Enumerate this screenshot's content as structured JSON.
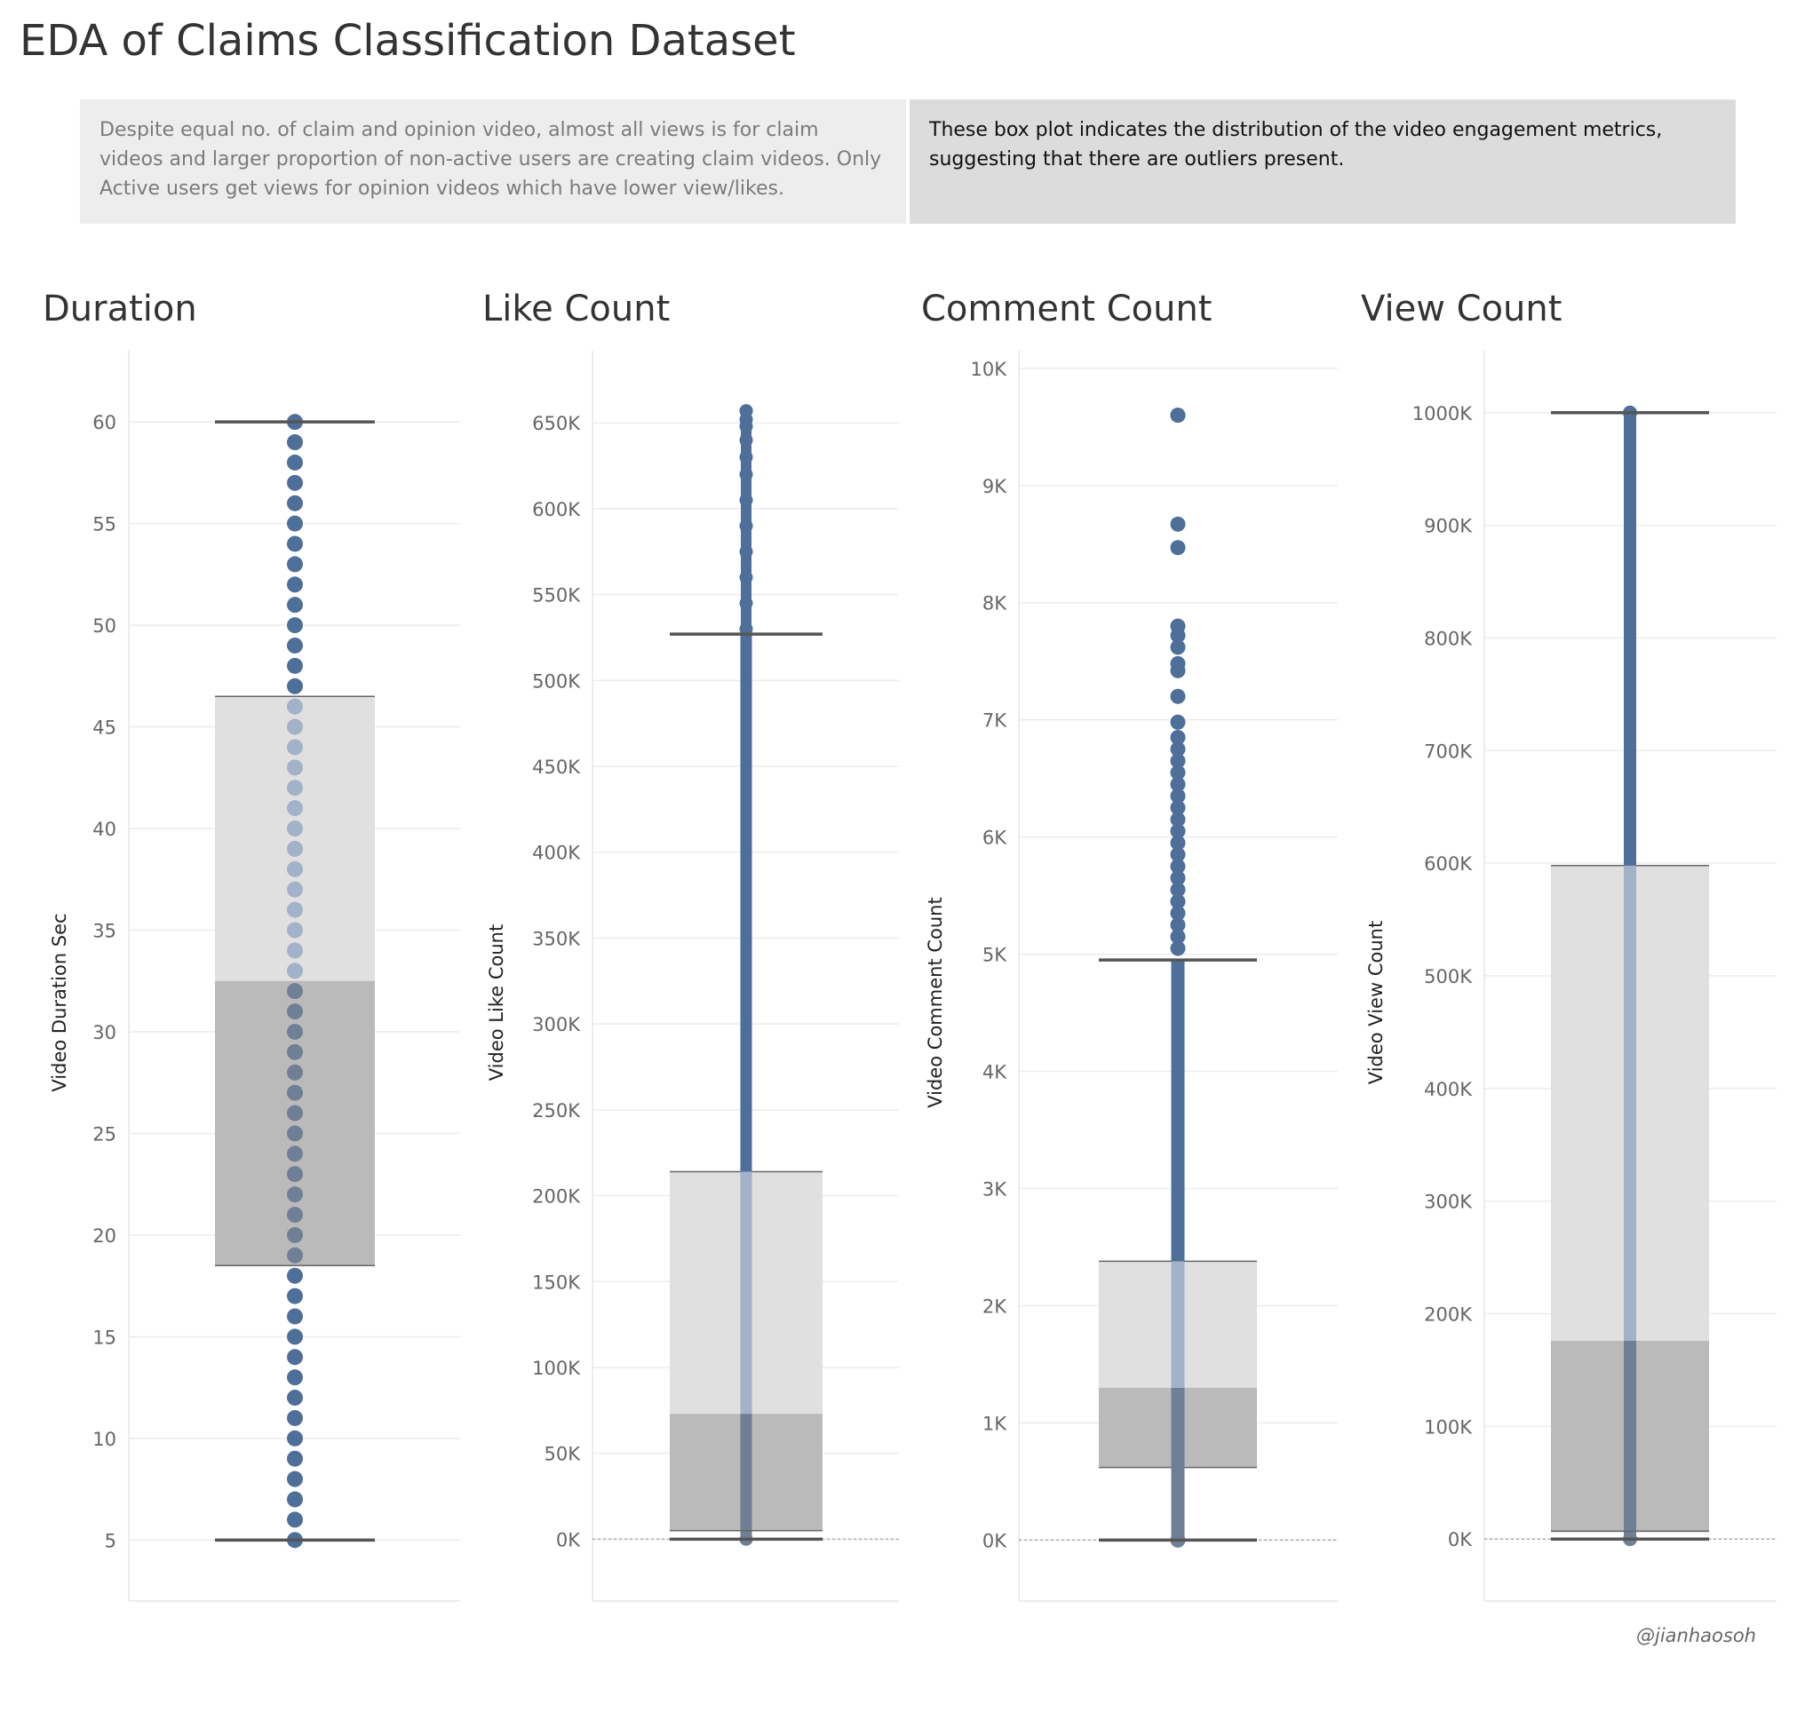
{
  "page": {
    "title": "EDA of Claims Classification Dataset",
    "note_left": "Despite equal no. of claim and opinion video, almost all views is for claim videos and larger proportion of non-active users are creating claim videos. Only Active users get views for opinion videos which have lower view/likes.",
    "note_right": "These box plot indicates the distribution of the video engagement metrics, suggesting that there are outliers present.",
    "credit": "@jianhaosoh"
  },
  "colors": {
    "point": "#4e6f99",
    "point_in_upper_box": "#a2b2c8",
    "point_in_lower_box": "#6f8096",
    "box_upper": "#e0e0e0",
    "box_lower": "#bababa",
    "whisker": "#555555",
    "grid": "#ececec"
  },
  "chart_data": [
    {
      "type": "box",
      "title": "Duration",
      "ylabel": "Video Duration Sec",
      "ylim": [
        2,
        63.5
      ],
      "ticks": [
        5,
        10,
        15,
        20,
        25,
        30,
        35,
        40,
        45,
        50,
        55,
        60
      ],
      "tick_labels": [
        "5",
        "10",
        "15",
        "20",
        "25",
        "30",
        "35",
        "40",
        "45",
        "50",
        "55",
        "60"
      ],
      "whisker_low": 5,
      "q1": 18.5,
      "median": 32.5,
      "q3": 46.5,
      "whisker_high": 60,
      "points": "every integer from 5 to 60 (discrete values)",
      "point_min": 5,
      "point_max": 60,
      "point_step": 1,
      "outliers": []
    },
    {
      "type": "box",
      "title": "Like Count",
      "ylabel": "Video Like Count",
      "ylim": [
        -36000,
        692000
      ],
      "ticks": [
        0,
        50000,
        100000,
        150000,
        200000,
        250000,
        300000,
        350000,
        400000,
        450000,
        500000,
        550000,
        600000,
        650000
      ],
      "tick_labels": [
        "0K",
        "50K",
        "100K",
        "150K",
        "200K",
        "250K",
        "300K",
        "350K",
        "400K",
        "450K",
        "500K",
        "550K",
        "600K",
        "650K"
      ],
      "whisker_low": 0,
      "lower_bound_line": 5000,
      "q1": 5000,
      "median": 73000,
      "q3": 214000,
      "whisker_high": 527000,
      "point_min": 0,
      "point_max": 657000,
      "outliers": [
        530000,
        545000,
        560000,
        575000,
        590000,
        605000,
        620000,
        630000,
        640000,
        648000,
        652000,
        657000
      ]
    },
    {
      "type": "box",
      "title": "Comment Count",
      "ylabel": "Video Comment Count",
      "ylim": [
        -520,
        10150
      ],
      "ticks": [
        0,
        1000,
        2000,
        3000,
        4000,
        5000,
        6000,
        7000,
        8000,
        9000,
        10000
      ],
      "tick_labels": [
        "0K",
        "1K",
        "2K",
        "3K",
        "4K",
        "5K",
        "6K",
        "7K",
        "8K",
        "9K",
        "10K"
      ],
      "whisker_low": 0,
      "q1": 620,
      "median": 1300,
      "q3": 2380,
      "whisker_high": 4950,
      "point_min": 0,
      "point_max": 9600,
      "outliers": [
        5050,
        5150,
        5250,
        5350,
        5450,
        5550,
        5650,
        5750,
        5850,
        5950,
        6050,
        6150,
        6250,
        6350,
        6450,
        6550,
        6650,
        6750,
        6850,
        6980,
        7200,
        7420,
        7480,
        7620,
        7720,
        7800,
        8470,
        8670,
        9600
      ]
    },
    {
      "type": "box",
      "title": "View Count",
      "ylabel": "Video View Count",
      "ylim": [
        -55000,
        1055000
      ],
      "ticks": [
        0,
        100000,
        200000,
        300000,
        400000,
        500000,
        600000,
        700000,
        800000,
        900000,
        1000000
      ],
      "tick_labels": [
        "0K",
        "100K",
        "200K",
        "300K",
        "400K",
        "500K",
        "600K",
        "700K",
        "800K",
        "900K",
        "1000K"
      ],
      "whisker_low": 0,
      "lower_bound_line": 7000,
      "q1": 7000,
      "median": 176000,
      "q3": 598000,
      "whisker_high": 1000000,
      "point_min": 0,
      "point_max": 1000000,
      "outliers": []
    }
  ]
}
